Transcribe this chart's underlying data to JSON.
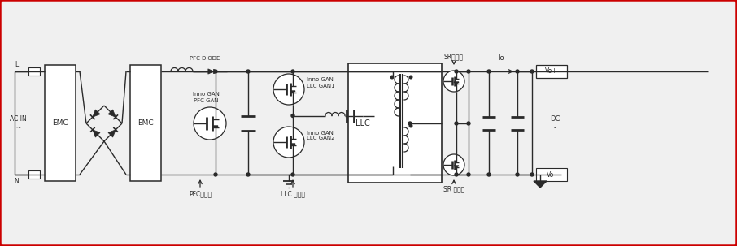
{
  "bg_color": "#f0f0f0",
  "border_color": "#cc0000",
  "line_color": "#2a2a2a",
  "text_color": "#2a2a2a",
  "fig_width": 9.06,
  "fig_height": 3.03,
  "labels": {
    "L": "L",
    "N": "N",
    "AC_IN": "AC IN\n~",
    "EMC1": "EMC",
    "EMC2": "EMC",
    "LLC": "LLC",
    "DC": "DC\n-",
    "Io": "Io",
    "Vo_plus": "Vo+",
    "Vo_minus": "Vo-",
    "inno_gan_pfc": "Inno GAN\nPFC GAN",
    "inno_gan_llc1": "Inno GAN\nLLC GAN1",
    "inno_gan_llc2": "Inno GAN\nLLC GAN2",
    "pfc_diode": "PFC DIODE",
    "pfc_ctrl": "PFC控制器",
    "llc_ctrl": "LLC 控制器",
    "sr_ctrl_top": "SR控制器",
    "sr_ctrl_bot": "SR 控制器"
  }
}
